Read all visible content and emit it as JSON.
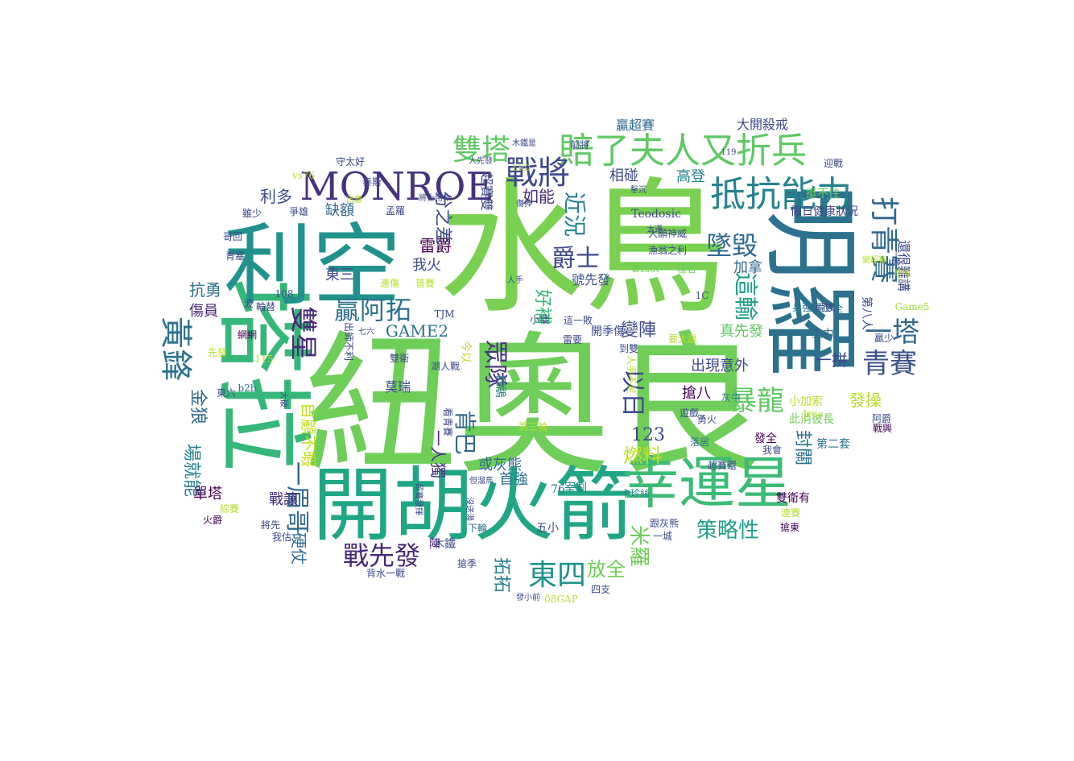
{
  "colors": {
    "background": "#ffffff",
    "palette": [
      "#440154",
      "#482878",
      "#3e4989",
      "#31688e",
      "#26828e",
      "#1f9e89",
      "#35b779",
      "#6ece58",
      "#b5de2b",
      "#fde725"
    ]
  },
  "words": [
    {
      "text": "水鳥",
      "color": "#7ad151",
      "vertical": false
    },
    {
      "text": "紐奧良",
      "color": "#6ece58",
      "vertical": false
    },
    {
      "text": "塔拉",
      "color": "#35b779",
      "vertical": true
    },
    {
      "text": "利空",
      "color": "#21918c",
      "vertical": false
    },
    {
      "text": "明羅",
      "color": "#2c728e",
      "vertical": true
    },
    {
      "text": "開胡火箭",
      "color": "#21a685",
      "vertical": false
    },
    {
      "text": "幸運星",
      "color": "#3bbb75",
      "vertical": false
    },
    {
      "text": "MONROE",
      "color": "#46327e",
      "vertical": false
    },
    {
      "text": "賠了夫人又折兵",
      "color": "#5ec962",
      "vertical": false
    },
    {
      "text": "抵抗能力",
      "color": "#26828e",
      "vertical": false
    },
    {
      "text": "戰將",
      "color": "#3e4989",
      "vertical": false
    },
    {
      "text": "雙塔",
      "color": "#5ec962",
      "vertical": false
    },
    {
      "text": "打青賽",
      "color": "#31688e",
      "vertical": true
    },
    {
      "text": "青賽",
      "color": "#3b528b",
      "vertical": false
    },
    {
      "text": "一塔",
      "color": "#31688e",
      "vertical": false
    },
    {
      "text": "黃鋒",
      "color": "#2c728e",
      "vertical": true
    },
    {
      "text": "雙星",
      "color": "#482878",
      "vertical": true
    },
    {
      "text": "墜毀",
      "color": "#31688e",
      "vertical": false
    },
    {
      "text": "這輸",
      "color": "#1f9e89",
      "vertical": true
    },
    {
      "text": "暴龍",
      "color": "#5ec962",
      "vertical": false
    },
    {
      "text": "東四",
      "color": "#21918c",
      "vertical": false
    },
    {
      "text": "戰先發",
      "color": "#482878",
      "vertical": false
    },
    {
      "text": "一眉哥",
      "color": "#31688e",
      "vertical": true
    },
    {
      "text": "贏阿拓",
      "color": "#2c728e",
      "vertical": false
    },
    {
      "text": "眾隊",
      "color": "#46327e",
      "vertical": true
    },
    {
      "text": "以日",
      "color": "#3e4989",
      "vertical": true
    },
    {
      "text": "爵士",
      "color": "#3e4989",
      "vertical": false
    },
    {
      "text": "近況",
      "color": "#26828e",
      "vertical": true
    },
    {
      "text": "如能",
      "color": "#472d7b",
      "vertical": false
    },
    {
      "text": "分之差",
      "color": "#3e4989",
      "vertical": true
    },
    {
      "text": "雷爵",
      "color": "#440154",
      "vertical": false
    },
    {
      "text": "利多",
      "color": "#3e4989",
      "vertical": false
    },
    {
      "text": "缺額",
      "color": "#31688e",
      "vertical": false
    },
    {
      "text": "GAME2",
      "color": "#2c728e",
      "vertical": false
    },
    {
      "text": "變陣",
      "color": "#3e4989",
      "vertical": false
    },
    {
      "text": "好補",
      "color": "#35b779",
      "vertical": true
    },
    {
      "text": "號先發",
      "color": "#3b528b",
      "vertical": false
    },
    {
      "text": "123",
      "color": "#3e4989",
      "vertical": false
    },
    {
      "text": "燃料",
      "color": "#bddf26",
      "vertical": false
    },
    {
      "text": "放全",
      "color": "#6ece58",
      "vertical": false
    },
    {
      "text": "策略性",
      "color": "#1f9e89",
      "vertical": false
    },
    {
      "text": "米羅",
      "color": "#6ece58",
      "vertical": true
    },
    {
      "text": "肯巴",
      "color": "#31688e",
      "vertical": true
    },
    {
      "text": "拓拓",
      "color": "#26828e",
      "vertical": true
    },
    {
      "text": "抗勇",
      "color": "#2c728e",
      "vertical": false
    },
    {
      "text": "傷員",
      "color": "#482878",
      "vertical": false
    },
    {
      "text": "金狼",
      "color": "#31688e",
      "vertical": true
    },
    {
      "text": "場就能",
      "color": "#26828e",
      "vertical": true
    },
    {
      "text": "單塔",
      "color": "#440154",
      "vertical": false
    },
    {
      "text": "戰讓",
      "color": "#472d7b",
      "vertical": false
    },
    {
      "text": "硬仗",
      "color": "#31688e",
      "vertical": true
    },
    {
      "text": "東三",
      "color": "#3e4989",
      "vertical": false
    },
    {
      "text": "我火",
      "color": "#3e4989",
      "vertical": false
    },
    {
      "text": "自顧不暇",
      "color": "#c2df23",
      "vertical": true
    },
    {
      "text": "一人獨",
      "color": "#46327e",
      "vertical": true
    },
    {
      "text": "或灰熊",
      "color": "#31688e",
      "vertical": false
    },
    {
      "text": "首強",
      "color": "#2c728e",
      "vertical": false
    },
    {
      "text": "出現意外",
      "color": "#3e4989",
      "vertical": false
    },
    {
      "text": "搶八",
      "color": "#440154",
      "vertical": false
    },
    {
      "text": "真先發",
      "color": "#5ec962",
      "vertical": false
    },
    {
      "text": "一拼",
      "color": "#3e4989",
      "vertical": false
    },
    {
      "text": "加拿",
      "color": "#31688e",
      "vertical": false
    },
    {
      "text": "發操",
      "color": "#b5de2b",
      "vertical": false
    },
    {
      "text": "封關",
      "color": "#2c728e",
      "vertical": true
    },
    {
      "text": "相碰",
      "color": "#3e4989",
      "vertical": false
    },
    {
      "text": "高登",
      "color": "#26828e",
      "vertical": false
    },
    {
      "text": "贏超賽",
      "color": "#31688e",
      "vertical": false
    },
    {
      "text": "大開殺戒",
      "color": "#3e4989",
      "vertical": false
    },
    {
      "text": "超賽雙",
      "color": "#3e4989",
      "vertical": true
    },
    {
      "text": "Teodosic",
      "color": "#3e4989",
      "vertical": false
    },
    {
      "text": "主力",
      "color": "#31688e",
      "vertical": false
    },
    {
      "text": "第八人",
      "color": "#3e4989",
      "vertical": true
    },
    {
      "text": "還很難講",
      "color": "#3e4989",
      "vertical": true
    },
    {
      "text": "小加索",
      "color": "#b5de2b",
      "vertical": false
    },
    {
      "text": "此消彼長",
      "color": "#6ece58",
      "vertical": false
    },
    {
      "text": "第二套",
      "color": "#2c728e",
      "vertical": false
    },
    {
      "text": "雙衛有",
      "color": "#440154",
      "vertical": false
    },
    {
      "text": "發全",
      "color": "#440154",
      "vertical": false
    },
    {
      "text": "莫瑞",
      "color": "#3e4989",
      "vertical": false
    },
    {
      "text": "四鵑",
      "color": "#26828e",
      "vertical": true
    },
    {
      "text": "今以",
      "color": "#b5de2b",
      "vertical": true
    },
    {
      "text": "木鐵",
      "color": "#3e4989",
      "vertical": false
    },
    {
      "text": "陣",
      "color": "#482878",
      "vertical": false
    },
    {
      "text": "五小",
      "color": "#3e4989",
      "vertical": false
    },
    {
      "text": "76",
      "color": "#31688e",
      "vertical": false
    },
    {
      "text": "宰割",
      "color": "#26828e",
      "vertical": false
    },
    {
      "text": "超賽還",
      "color": "#3e4989",
      "vertical": false
    },
    {
      "text": "下輪",
      "color": "#2c728e",
      "vertical": false
    },
    {
      "text": "卡珍絲",
      "color": "#26828e",
      "vertical": false
    },
    {
      "text": "跟灰熊",
      "color": "#3e4989",
      "vertical": false
    },
    {
      "text": "一城",
      "color": "#3e4989",
      "vertical": false
    },
    {
      "text": "搶東",
      "color": "#440154",
      "vertical": false
    },
    {
      "text": "連賽",
      "color": "#b5de2b",
      "vertical": false
    },
    {
      "text": "兵強馬壯",
      "color": "#2c728e",
      "vertical": false
    },
    {
      "text": "雨敗",
      "color": "#3e4989",
      "vertical": false
    },
    {
      "text": "挺不住",
      "color": "#6ece58",
      "vertical": false
    },
    {
      "text": "假日健康狀況",
      "color": "#3e4989",
      "vertical": false
    },
    {
      "text": "迎戰",
      "color": "#3e4989",
      "vertical": false
    },
    {
      "text": "Game5",
      "color": "#a0da39",
      "vertical": false
    },
    {
      "text": "一網",
      "color": "#3e4989",
      "vertical": true
    },
    {
      "text": "贏少",
      "color": "#3e4989",
      "vertical": false
    },
    {
      "text": "阿爵",
      "color": "#3e4989",
      "vertical": false
    },
    {
      "text": "戰興",
      "color": "#440154",
      "vertical": false
    },
    {
      "text": "變超賽",
      "color": "#b5de2b",
      "vertical": false
    },
    {
      "text": "學敗",
      "color": "#b5de2b",
      "vertical": false
    },
    {
      "text": "遊戲",
      "color": "#3e4989",
      "vertical": false
    },
    {
      "text": "全",
      "color": "#2c728e",
      "vertical": false
    },
    {
      "text": "漁翁之利",
      "color": "#3e4989",
      "vertical": false
    },
    {
      "text": "大願神威",
      "color": "#3e4989",
      "vertical": false
    },
    {
      "text": "看西決",
      "color": "#6ece58",
      "vertical": false
    },
    {
      "text": "穩著",
      "color": "#6ece58",
      "vertical": false
    },
    {
      "text": "開季傷",
      "color": "#3e4989",
      "vertical": false
    },
    {
      "text": "雷要",
      "color": "#3e4989",
      "vertical": false
    },
    {
      "text": "這一敗",
      "color": "#3e4989",
      "vertical": false
    },
    {
      "text": "要大贏",
      "color": "#b5de2b",
      "vertical": false
    },
    {
      "text": "到雙",
      "color": "#3e4989",
      "vertical": false
    },
    {
      "text": "人手不足",
      "color": "#b5de2b",
      "vertical": true
    },
    {
      "text": "灰牛",
      "color": "#2c728e",
      "vertical": false
    },
    {
      "text": "勇火",
      "color": "#3e4989",
      "vertical": false
    },
    {
      "text": "落居",
      "color": "#2c728e",
      "vertical": false
    },
    {
      "text": "Jrue",
      "color": "#b5de2b",
      "vertical": false
    },
    {
      "text": "我會",
      "color": "#3e4989",
      "vertical": false
    },
    {
      "text": "1C",
      "color": "#3e4989",
      "vertical": false
    },
    {
      "text": "TJM",
      "color": "#3e4989",
      "vertical": false
    },
    {
      "text": "108",
      "color": "#3e4989",
      "vertical": false
    },
    {
      "text": "115",
      "color": "#b5de2b",
      "vertical": false
    },
    {
      "text": "b2b",
      "color": "#2c728e",
      "vertical": false
    },
    {
      "text": "08GAP",
      "color": "#b5de2b",
      "vertical": false
    },
    {
      "text": "四支",
      "color": "#3e4989",
      "vertical": false
    },
    {
      "text": "背水一戰",
      "color": "#3e4989",
      "vertical": false
    },
    {
      "text": "搶季",
      "color": "#3e4989",
      "vertical": false
    },
    {
      "text": "發小前",
      "color": "#3e4989",
      "vertical": false
    },
    {
      "text": "我估",
      "color": "#3e4989",
      "vertical": false
    },
    {
      "text": "將先",
      "color": "#3e4989",
      "vertical": false
    },
    {
      "text": "綜賽",
      "color": "#b5de2b",
      "vertical": false
    },
    {
      "text": "火爵",
      "color": "#440154",
      "vertical": false
    },
    {
      "text": "東六",
      "color": "#3e4989",
      "vertical": false
    },
    {
      "text": "波",
      "color": "#3e4989",
      "vertical": false
    },
    {
      "text": "輪替",
      "color": "#3e4989",
      "vertical": false
    },
    {
      "text": "網網",
      "color": "#440154",
      "vertical": false
    },
    {
      "text": "先發",
      "color": "#b5de2b",
      "vertical": false
    },
    {
      "text": "青塞",
      "color": "#3e4989",
      "vertical": false
    },
    {
      "text": "哥回",
      "color": "#3e4989",
      "vertical": false
    },
    {
      "text": "雖少",
      "color": "#3e4989",
      "vertical": false
    },
    {
      "text": "爭雄",
      "color": "#3e4989",
      "vertical": false
    },
    {
      "text": "vs76",
      "color": "#b5de2b",
      "vertical": false
    },
    {
      "text": "守太好",
      "color": "#3e4989",
      "vertical": false
    },
    {
      "text": "泰斯",
      "color": "#3e4989",
      "vertical": false
    },
    {
      "text": "孟羅",
      "color": "#3e4989",
      "vertical": false
    },
    {
      "text": "出盡",
      "color": "#b5de2b",
      "vertical": false
    },
    {
      "text": "將士用命",
      "color": "#3e4989",
      "vertical": false
    },
    {
      "text": "木鐵是",
      "color": "#3e4989",
      "vertical": false
    },
    {
      "text": "人先發",
      "color": "#3e4989",
      "vertical": false
    },
    {
      "text": "前將",
      "color": "#3e4989",
      "vertical": false
    },
    {
      "text": "LKD",
      "color": "#b5de2b",
      "vertical": false
    },
    {
      "text": "119",
      "color": "#3e4989",
      "vertical": false
    },
    {
      "text": "太遜",
      "color": "#3e4989",
      "vertical": false
    },
    {
      "text": "傷掉",
      "color": "#3e4989",
      "vertical": false
    },
    {
      "text": "擊沉",
      "color": "#3e4989",
      "vertical": false
    },
    {
      "text": "人手",
      "color": "#3e4989",
      "vertical": false
    },
    {
      "text": "連傷",
      "color": "#b5de2b",
      "vertical": false
    },
    {
      "text": "普賽",
      "color": "#b5de2b",
      "vertical": false
    },
    {
      "text": "小犢",
      "color": "#3e4989",
      "vertical": false
    },
    {
      "text": "雙衛",
      "color": "#3e4989",
      "vertical": false
    },
    {
      "text": "湖人戰",
      "color": "#3e4989",
      "vertical": false
    },
    {
      "text": "看青賽",
      "color": "#3e4989",
      "vertical": true
    },
    {
      "text": "第三輪",
      "color": "#b5de2b",
      "vertical": false
    },
    {
      "text": "超賽發揮",
      "color": "#3e4989",
      "vertical": true
    },
    {
      "text": "沒送湯",
      "color": "#3e4989",
      "vertical": true
    },
    {
      "text": "但溜馬",
      "color": "#3e4989",
      "vertical": false
    },
    {
      "text": "出師不利",
      "color": "#3e4989",
      "vertical": true
    },
    {
      "text": "七六",
      "color": "#3e4989",
      "vertical": false
    },
    {
      "text": "大破",
      "color": "#3e4989",
      "vertical": true
    }
  ]
}
